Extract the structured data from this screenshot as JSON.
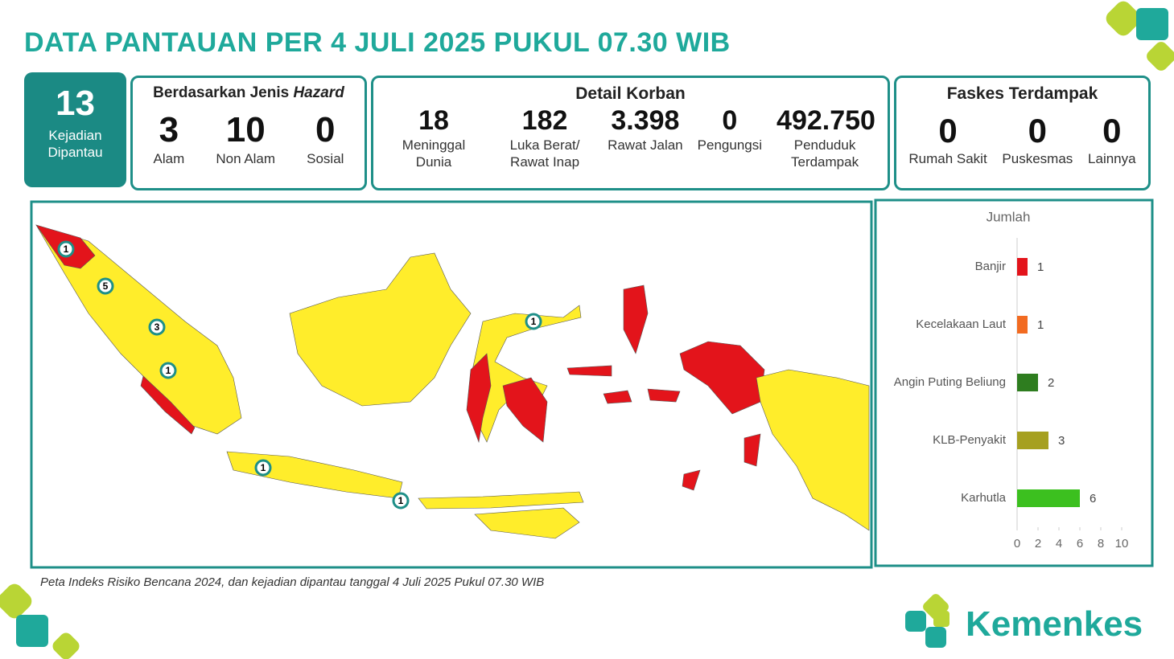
{
  "title": "DATA PANTAUAN PER 4 JULI 2025 PUKUL 07.30 WIB",
  "events": {
    "value": 13,
    "label": "Kejadian Dipantau"
  },
  "hazard": {
    "title": "Berdasarkan Jenis",
    "title_emphasis": "Hazard",
    "items": [
      {
        "value": 3,
        "label": "Alam"
      },
      {
        "value": 10,
        "label": "Non Alam"
      },
      {
        "value": 0,
        "label": "Sosial"
      }
    ]
  },
  "victims": {
    "title": "Detail Korban",
    "items": [
      {
        "value": 18,
        "label": "Meninggal Dunia"
      },
      {
        "value": 182,
        "label": "Luka Berat/ Rawat Inap"
      },
      {
        "value": 3398,
        "value_label": "3.398",
        "label": "Rawat Jalan"
      },
      {
        "value": 0,
        "label": "Pengungsi"
      },
      {
        "value": 492750,
        "value_label": "492.750",
        "label": "Penduduk Terdampak"
      }
    ]
  },
  "facilities": {
    "title": "Faskes Terdampak",
    "items": [
      {
        "value": 0,
        "label": "Rumah Sakit"
      },
      {
        "value": 0,
        "label": "Puskesmas"
      },
      {
        "value": 0,
        "label": "Lainnya"
      }
    ]
  },
  "map": {
    "caption": "Peta Indeks Risiko Bencana 2024, dan kejadian dipantau tanggal 4 Juli 2025 Pukul 07.30 WIB",
    "markers": [
      1,
      5,
      3,
      1,
      1,
      1,
      1
    ]
  },
  "logo": "Kemenkes",
  "chart_data": {
    "type": "bar",
    "orientation": "horizontal",
    "title": "Jumlah",
    "categories": [
      "Banjir",
      "Kecelakaan Laut",
      "Angin Puting Beliung",
      "KLB-Penyakit",
      "Karhutla"
    ],
    "values": [
      1,
      1,
      2,
      3,
      6
    ],
    "colors": [
      "#e3141b",
      "#f26b21",
      "#2e7d1f",
      "#a6a020",
      "#3cc01f"
    ],
    "xlim": [
      0,
      10
    ],
    "xticks": [
      0,
      2,
      4,
      6,
      8,
      10
    ]
  }
}
